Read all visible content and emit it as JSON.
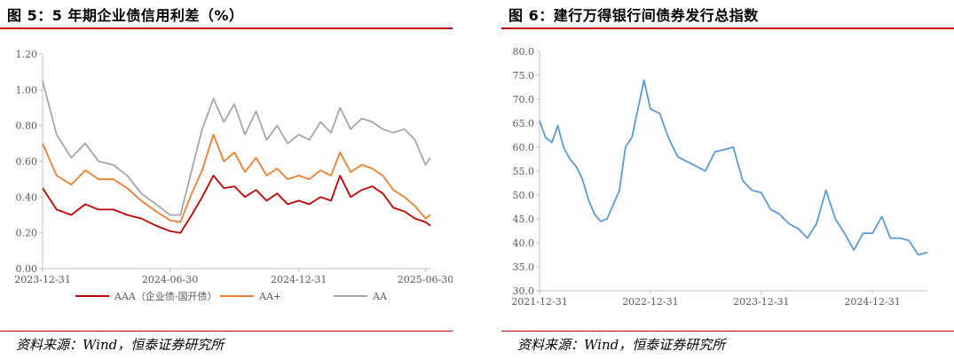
{
  "figures": [
    {
      "title": "图 5：5 年期企业债信用利差（%）",
      "source": "资料来源：Wind，恒泰证券研究所"
    },
    {
      "title": "图 6：建行万得银行间债券发行总指数",
      "source": "资料来源：Wind，恒泰证券研究所"
    }
  ],
  "colors": {
    "rule": "#c00000",
    "aaa": "#c00000",
    "aaplus": "#ed7d31",
    "aa": "#a6a6a6",
    "index": "#5b9bd5",
    "axis": "#bfbfbf"
  },
  "chart_data": [
    {
      "type": "line",
      "title": "图 5：5 年期企业债信用利差（%）",
      "xlabel": "",
      "ylabel": "",
      "x_ticks": [
        "2023-12-31",
        "2024-06-30",
        "2024-12-31",
        "2025-06-30"
      ],
      "x_range": [
        "2023-12-31",
        "2025-07-07"
      ],
      "y_ticks": [
        "0.00",
        "0.20",
        "0.40",
        "0.60",
        "0.80",
        "1.00",
        "1.20"
      ],
      "ylim": [
        0,
        1.2
      ],
      "grid": false,
      "legend": "bottom",
      "x": [
        "2023-12-31",
        "2024-01-20",
        "2024-02-10",
        "2024-03-01",
        "2024-03-20",
        "2024-04-10",
        "2024-04-30",
        "2024-05-20",
        "2024-06-10",
        "2024-06-30",
        "2024-07-15",
        "2024-07-31",
        "2024-08-15",
        "2024-08-31",
        "2024-09-15",
        "2024-09-30",
        "2024-10-15",
        "2024-10-31",
        "2024-11-15",
        "2024-11-30",
        "2024-12-15",
        "2024-12-31",
        "2025-01-15",
        "2025-01-31",
        "2025-02-15",
        "2025-02-28",
        "2025-03-15",
        "2025-03-31",
        "2025-04-15",
        "2025-04-30",
        "2025-05-15",
        "2025-05-31",
        "2025-06-15",
        "2025-06-30",
        "2025-07-07"
      ],
      "series": [
        {
          "name": "AAA（企业债-国开债）",
          "values": [
            0.45,
            0.33,
            0.3,
            0.36,
            0.33,
            0.33,
            0.3,
            0.28,
            0.24,
            0.21,
            0.2,
            0.3,
            0.4,
            0.52,
            0.45,
            0.46,
            0.4,
            0.44,
            0.38,
            0.42,
            0.36,
            0.38,
            0.36,
            0.4,
            0.38,
            0.52,
            0.4,
            0.44,
            0.46,
            0.42,
            0.34,
            0.32,
            0.28,
            0.26,
            0.24
          ]
        },
        {
          "name": "AA+",
          "values": [
            0.7,
            0.52,
            0.47,
            0.55,
            0.5,
            0.5,
            0.45,
            0.38,
            0.32,
            0.27,
            0.26,
            0.42,
            0.55,
            0.75,
            0.6,
            0.65,
            0.54,
            0.62,
            0.52,
            0.56,
            0.5,
            0.52,
            0.5,
            0.55,
            0.52,
            0.65,
            0.54,
            0.58,
            0.56,
            0.52,
            0.44,
            0.4,
            0.35,
            0.28,
            0.3
          ]
        },
        {
          "name": "AA",
          "values": [
            1.05,
            0.75,
            0.62,
            0.7,
            0.6,
            0.58,
            0.52,
            0.42,
            0.36,
            0.3,
            0.3,
            0.55,
            0.78,
            0.95,
            0.82,
            0.92,
            0.75,
            0.88,
            0.72,
            0.8,
            0.7,
            0.75,
            0.72,
            0.82,
            0.76,
            0.9,
            0.78,
            0.84,
            0.82,
            0.78,
            0.76,
            0.78,
            0.72,
            0.58,
            0.62
          ]
        }
      ]
    },
    {
      "type": "line",
      "title": "图 6：建行万得银行间债券发行总指数",
      "xlabel": "",
      "ylabel": "",
      "x_ticks": [
        "2021-12-31",
        "2022-12-31",
        "2023-12-31",
        "2024-12-31"
      ],
      "x_range": [
        "2021-12-31",
        "2025-06-30"
      ],
      "y_ticks": [
        "30.0",
        "35.0",
        "40.0",
        "45.0",
        "50.0",
        "55.0",
        "60.0",
        "65.0",
        "70.0",
        "75.0",
        "80.0"
      ],
      "ylim": [
        30,
        80
      ],
      "grid": false,
      "legend": "none",
      "x": [
        "2021-12-31",
        "2022-01-20",
        "2022-02-10",
        "2022-03-01",
        "2022-03-20",
        "2022-04-10",
        "2022-04-30",
        "2022-05-20",
        "2022-06-10",
        "2022-06-30",
        "2022-07-20",
        "2022-08-10",
        "2022-08-31",
        "2022-09-20",
        "2022-10-10",
        "2022-10-31",
        "2022-11-20",
        "2022-12-10",
        "2022-12-31",
        "2023-01-31",
        "2023-02-28",
        "2023-03-31",
        "2023-04-30",
        "2023-05-31",
        "2023-06-30",
        "2023-07-31",
        "2023-08-31",
        "2023-09-30",
        "2023-10-31",
        "2023-11-30",
        "2023-12-31",
        "2024-01-31",
        "2024-02-29",
        "2024-03-31",
        "2024-04-30",
        "2024-05-31",
        "2024-06-30",
        "2024-07-31",
        "2024-08-31",
        "2024-09-30",
        "2024-10-31",
        "2024-11-30",
        "2024-12-31",
        "2025-01-31",
        "2025-02-28",
        "2025-03-31",
        "2025-04-30",
        "2025-05-31",
        "2025-06-30"
      ],
      "series": [
        {
          "name": "",
          "values": [
            65.5,
            62.0,
            61.0,
            64.5,
            60.0,
            57.5,
            56.0,
            53.5,
            49.0,
            46.0,
            44.5,
            45.0,
            48.0,
            51.0,
            60.0,
            62.0,
            68.0,
            74.0,
            68.0,
            67.0,
            62.0,
            58.0,
            57.0,
            56.0,
            55.0,
            59.0,
            59.5,
            60.0,
            53.0,
            51.0,
            50.5,
            47.0,
            46.0,
            44.0,
            43.0,
            41.0,
            44.0,
            51.0,
            45.0,
            42.0,
            38.5,
            42.0,
            42.0,
            45.5,
            41.0,
            41.0,
            40.5,
            37.5,
            38.0
          ]
        }
      ]
    }
  ]
}
